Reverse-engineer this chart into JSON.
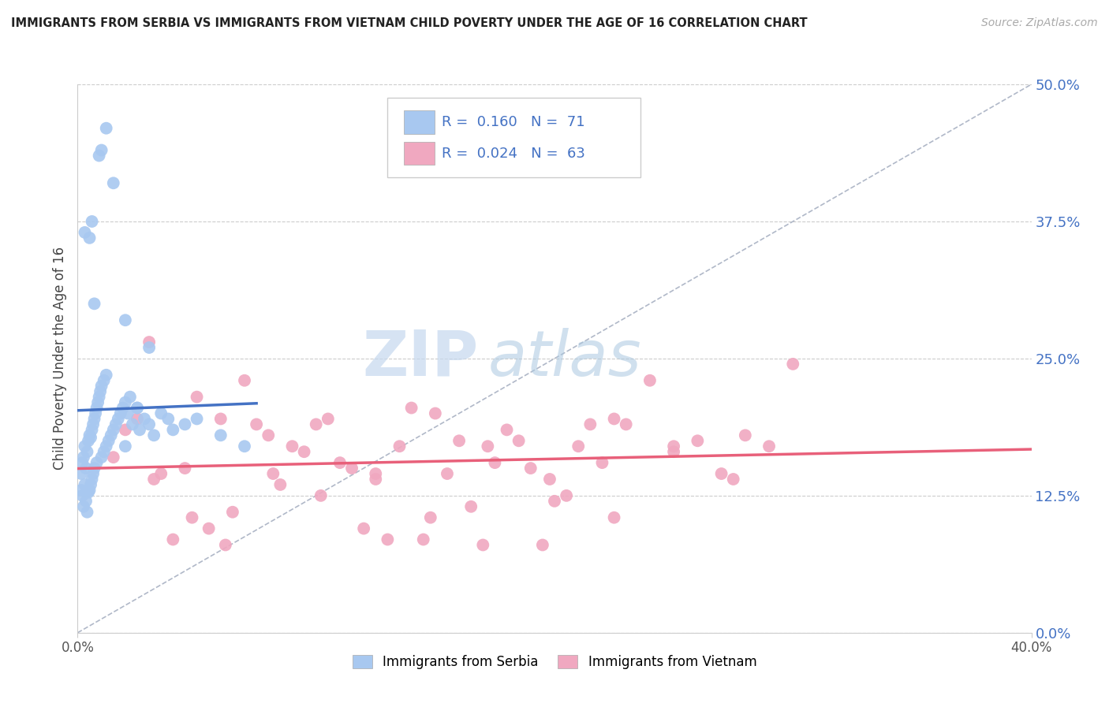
{
  "title": "IMMIGRANTS FROM SERBIA VS IMMIGRANTS FROM VIETNAM CHILD POVERTY UNDER THE AGE OF 16 CORRELATION CHART",
  "source": "Source: ZipAtlas.com",
  "ylabel": "Child Poverty Under the Age of 16",
  "ytick_vals": [
    0.0,
    12.5,
    25.0,
    37.5,
    50.0
  ],
  "xlim": [
    0.0,
    40.0
  ],
  "ylim": [
    0.0,
    50.0
  ],
  "watermark_zip": "ZIP",
  "watermark_atlas": "atlas",
  "legend_serbia_R": "0.160",
  "legend_serbia_N": "71",
  "legend_vietnam_R": "0.024",
  "legend_vietnam_N": "63",
  "serbia_color": "#a8c8f0",
  "vietnam_color": "#f0a8c0",
  "serbia_line_color": "#4472c4",
  "vietnam_line_color": "#e8607a",
  "diagonal_color": "#b0b8c8",
  "background_color": "#ffffff",
  "serbia_x": [
    0.15,
    0.15,
    0.2,
    0.2,
    0.25,
    0.25,
    0.3,
    0.3,
    0.35,
    0.35,
    0.4,
    0.4,
    0.45,
    0.45,
    0.5,
    0.5,
    0.55,
    0.55,
    0.6,
    0.6,
    0.65,
    0.65,
    0.7,
    0.7,
    0.75,
    0.8,
    0.8,
    0.85,
    0.9,
    0.95,
    1.0,
    1.0,
    1.1,
    1.1,
    1.2,
    1.2,
    1.3,
    1.4,
    1.5,
    1.6,
    1.7,
    1.8,
    1.9,
    2.0,
    2.0,
    2.1,
    2.2,
    2.3,
    2.5,
    2.6,
    2.8,
    3.0,
    3.2,
    3.5,
    3.8,
    4.0,
    4.5,
    5.0,
    6.0,
    7.0,
    0.3,
    0.5,
    0.6,
    0.7,
    0.9,
    1.0,
    1.2,
    1.5,
    2.0,
    2.5,
    3.0
  ],
  "serbia_y": [
    14.5,
    13.0,
    15.5,
    12.5,
    16.0,
    11.5,
    17.0,
    13.5,
    15.0,
    12.0,
    16.5,
    11.0,
    17.5,
    12.8,
    18.0,
    13.0,
    17.8,
    13.5,
    18.5,
    14.0,
    19.0,
    14.5,
    19.5,
    15.0,
    20.0,
    20.5,
    15.5,
    21.0,
    21.5,
    22.0,
    22.5,
    16.0,
    23.0,
    16.5,
    23.5,
    17.0,
    17.5,
    18.0,
    18.5,
    19.0,
    19.5,
    20.0,
    20.5,
    21.0,
    17.0,
    20.0,
    21.5,
    19.0,
    20.5,
    18.5,
    19.5,
    19.0,
    18.0,
    20.0,
    19.5,
    18.5,
    19.0,
    19.5,
    18.0,
    17.0,
    36.5,
    36.0,
    37.5,
    30.0,
    43.5,
    44.0,
    46.0,
    41.0,
    28.5,
    20.5,
    26.0
  ],
  "vietnam_x": [
    1.5,
    2.0,
    2.5,
    3.0,
    3.5,
    4.0,
    4.5,
    5.0,
    5.5,
    6.0,
    6.5,
    7.0,
    7.5,
    8.0,
    8.5,
    9.0,
    9.5,
    10.0,
    10.5,
    11.0,
    11.5,
    12.0,
    12.5,
    13.0,
    13.5,
    14.0,
    14.5,
    15.0,
    15.5,
    16.0,
    16.5,
    17.0,
    17.5,
    18.0,
    18.5,
    19.0,
    19.5,
    20.0,
    20.5,
    21.0,
    21.5,
    22.0,
    22.5,
    23.0,
    24.0,
    25.0,
    26.0,
    27.0,
    28.0,
    29.0,
    3.2,
    4.8,
    6.2,
    8.2,
    10.2,
    12.5,
    14.8,
    17.2,
    19.8,
    22.5,
    25.0,
    27.5,
    30.0
  ],
  "vietnam_y": [
    16.0,
    18.5,
    19.5,
    26.5,
    14.5,
    8.5,
    15.0,
    21.5,
    9.5,
    19.5,
    11.0,
    23.0,
    19.0,
    18.0,
    13.5,
    17.0,
    16.5,
    19.0,
    19.5,
    15.5,
    15.0,
    9.5,
    14.5,
    8.5,
    17.0,
    20.5,
    8.5,
    20.0,
    14.5,
    17.5,
    11.5,
    8.0,
    15.5,
    18.5,
    17.5,
    15.0,
    8.0,
    12.0,
    12.5,
    17.0,
    19.0,
    15.5,
    10.5,
    19.0,
    23.0,
    16.5,
    17.5,
    14.5,
    18.0,
    17.0,
    14.0,
    10.5,
    8.0,
    14.5,
    12.5,
    14.0,
    10.5,
    17.0,
    14.0,
    19.5,
    17.0,
    14.0,
    24.5
  ]
}
